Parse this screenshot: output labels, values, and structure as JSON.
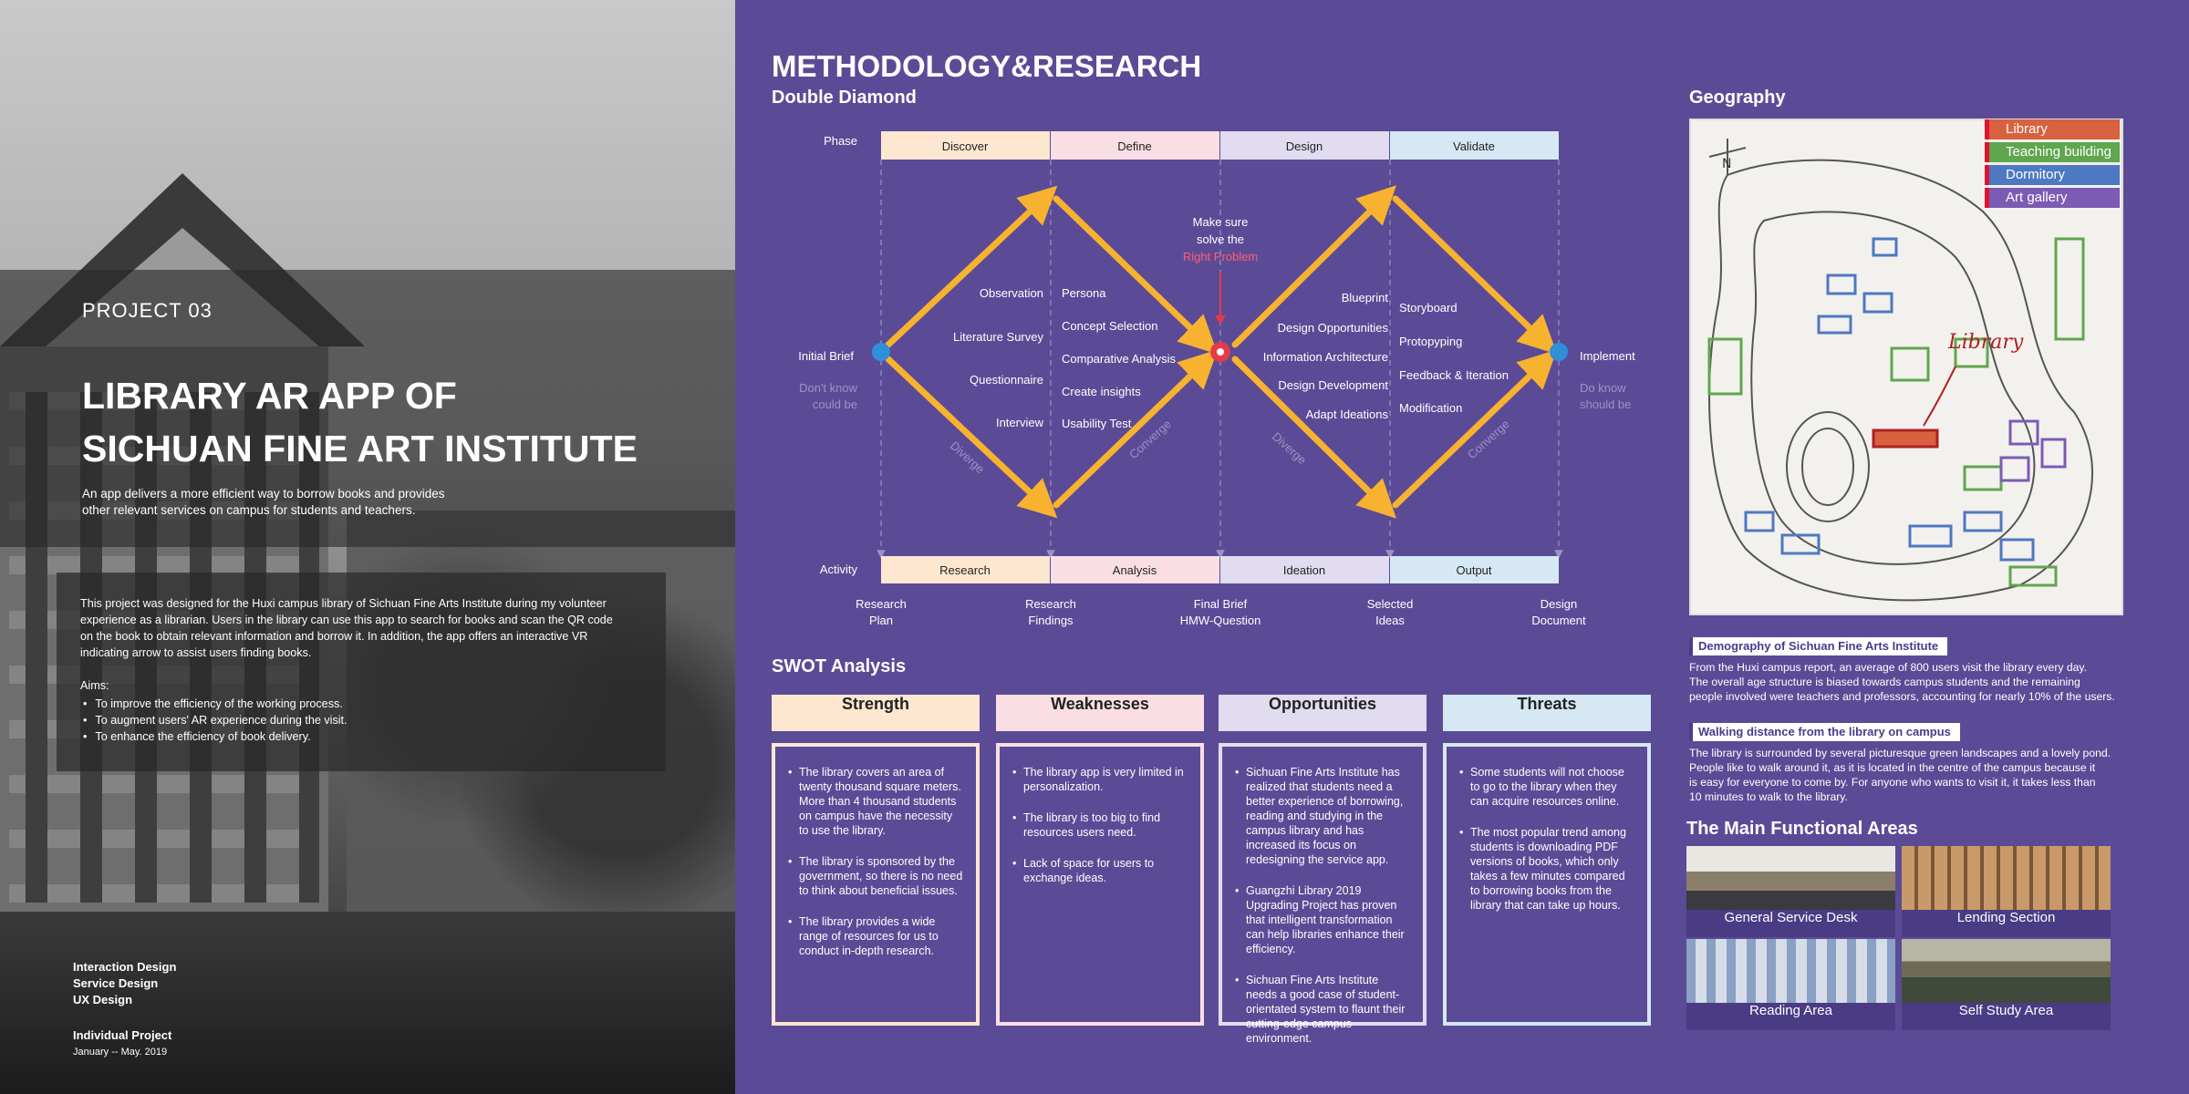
{
  "left": {
    "project_number": "PROJECT 03",
    "title_line1": "LIBRARY AR APP OF",
    "title_line2": "SICHUAN FINE ART INSTITUTE",
    "lead_line1": "An app delivers a more efficient way to borrow books and provides",
    "lead_line2": "other relevant services on campus for students and teachers.",
    "description_lines": [
      "This project was designed for the Huxi campus library of Sichuan Fine Arts Institute during my volunteer",
      "experience as a librarian. Users in the library can use this app to search for books and scan the QR code",
      "on the book to obtain relevant information and borrow it. In addition,  the app offers an interactive VR",
      "indicating arrow to assist users finding books."
    ],
    "aims_title": "Aims:",
    "aims": [
      "To improve the efficiency of the working process.",
      "To augment users' AR experience during the visit.",
      "To enhance the efficiency of book delivery."
    ],
    "tags": [
      "Interaction Design",
      "Service Design",
      "UX Design"
    ],
    "project_type": "Individual Project",
    "dates": "January -- May. 2019"
  },
  "methodology": {
    "title": "METHODOLOGY&RESEARCH",
    "subtitle": "Double Diamond",
    "phase_label": "Phase",
    "activity_label": "Activity",
    "phases": [
      "Discover",
      "Define",
      "Design",
      "Validate"
    ],
    "activities": [
      "Research",
      "Analysis",
      "Ideation",
      "Output"
    ],
    "phase_colors": [
      "#fde7d1",
      "#f9dfe3",
      "#e1dcef",
      "#d6e8f4"
    ],
    "initial_brief": "Initial Brief",
    "initial_note_1": "Don't know",
    "initial_note_2": "could be",
    "implement": "Implement",
    "implement_note_1": "Do know",
    "implement_note_2": "should be",
    "center_note_1": "Make sure",
    "center_note_2": "solve the",
    "center_note_3": "Right Problem",
    "discover_methods": [
      "Observation",
      "Literature Survey",
      "Questionnaire",
      "Interview"
    ],
    "define_methods": [
      "Persona",
      "Concept Selection",
      "Comparative Analysis",
      "Create insights",
      "Usability Test"
    ],
    "design_methods": [
      "Blueprint",
      "Design Opportunities",
      "Information Architecture",
      "Design Development",
      "Adapt Ideations"
    ],
    "validate_methods": [
      "Storyboard",
      "Protopyping",
      "Feedback & Iteration",
      "Modification"
    ],
    "diverge": "Diverge",
    "converge": "Converge",
    "outputs": [
      {
        "l1": "Research",
        "l2": "Plan"
      },
      {
        "l1": "Research",
        "l2": "Findings"
      },
      {
        "l1": "Final Brief",
        "l2": "HMW-Question"
      },
      {
        "l1": "Selected",
        "l2": "Ideas"
      },
      {
        "l1": "Design",
        "l2": "Document"
      }
    ],
    "accent_color": "#f7b230",
    "node_blue": "#2f8fd8",
    "node_red": "#e23b4a"
  },
  "swot": {
    "title": "SWOT Analysis",
    "columns": [
      {
        "heading": "Strength",
        "color": "#fde7d1",
        "items": [
          "The library covers an area of twenty thousand square meters. More than 4 thousand students on campus have the necessity to use the library.",
          "The library is sponsored by the government, so there is no need to think about beneficial issues.",
          "The library provides a wide range of resources for us to conduct in-depth research."
        ]
      },
      {
        "heading": "Weaknesses",
        "color": "#f9dfe3",
        "items": [
          "The library app is very limited in personalization.",
          "The library is too big to find resources users need.",
          "Lack of space for users to exchange ideas."
        ]
      },
      {
        "heading": "Opportunities",
        "color": "#e1dcef",
        "items": [
          "Sichuan Fine Arts Institute has realized that students need a better experience of borrowing, reading and studying in the campus library and has increased its focus on redesigning the service app.",
          "Guangzhi Library 2019 Upgrading Project has proven that intelligent transformation can help libraries enhance their efficiency.",
          "Sichuan Fine Arts Institute needs a good case of student-orientated system to flaunt their cutting-edge campus environment."
        ]
      },
      {
        "heading": "Threats",
        "color": "#d6e8f4",
        "items": [
          "Some students will not choose to go to the library when they can acquire resources online.",
          "The most popular trend among students is downloading PDF versions of books, which only takes a few minutes compared to borrowing books from the library that can take up hours."
        ]
      }
    ]
  },
  "geography": {
    "title": "Geography",
    "legend": [
      {
        "label": "Library",
        "color": "#d8623f"
      },
      {
        "label": "Teaching building",
        "color": "#5fa64e"
      },
      {
        "label": "Dormitory",
        "color": "#4d78c2"
      },
      {
        "label": "Art gallery",
        "color": "#7c5bb5"
      }
    ],
    "map_label": "Library",
    "map_north": "N",
    "demography_title": "Demography of Sichuan Fine Arts Institute",
    "demography_lines": [
      "From the Huxi campus report, an average of 800 users visit the library every day.",
      "The overall age structure is biased towards campus students and the remaining",
      "people involved were teachers and professors, accounting for nearly 10% of the users."
    ],
    "walking_title": "Walking distance from the library on campus",
    "walking_lines": [
      "The library is surrounded by several picturesque green landscapes and a lovely pond.",
      "People like to walk around it, as it is located in the centre of the campus because it",
      "is easy for everyone to come by. For anyone who wants to visit it, it takes less than",
      "10 minutes to walk to the library."
    ],
    "areas_title": "The Main Functional Areas",
    "areas": [
      "General Service Desk",
      "Lending Section",
      "Reading Area",
      "Self Study Area"
    ]
  }
}
